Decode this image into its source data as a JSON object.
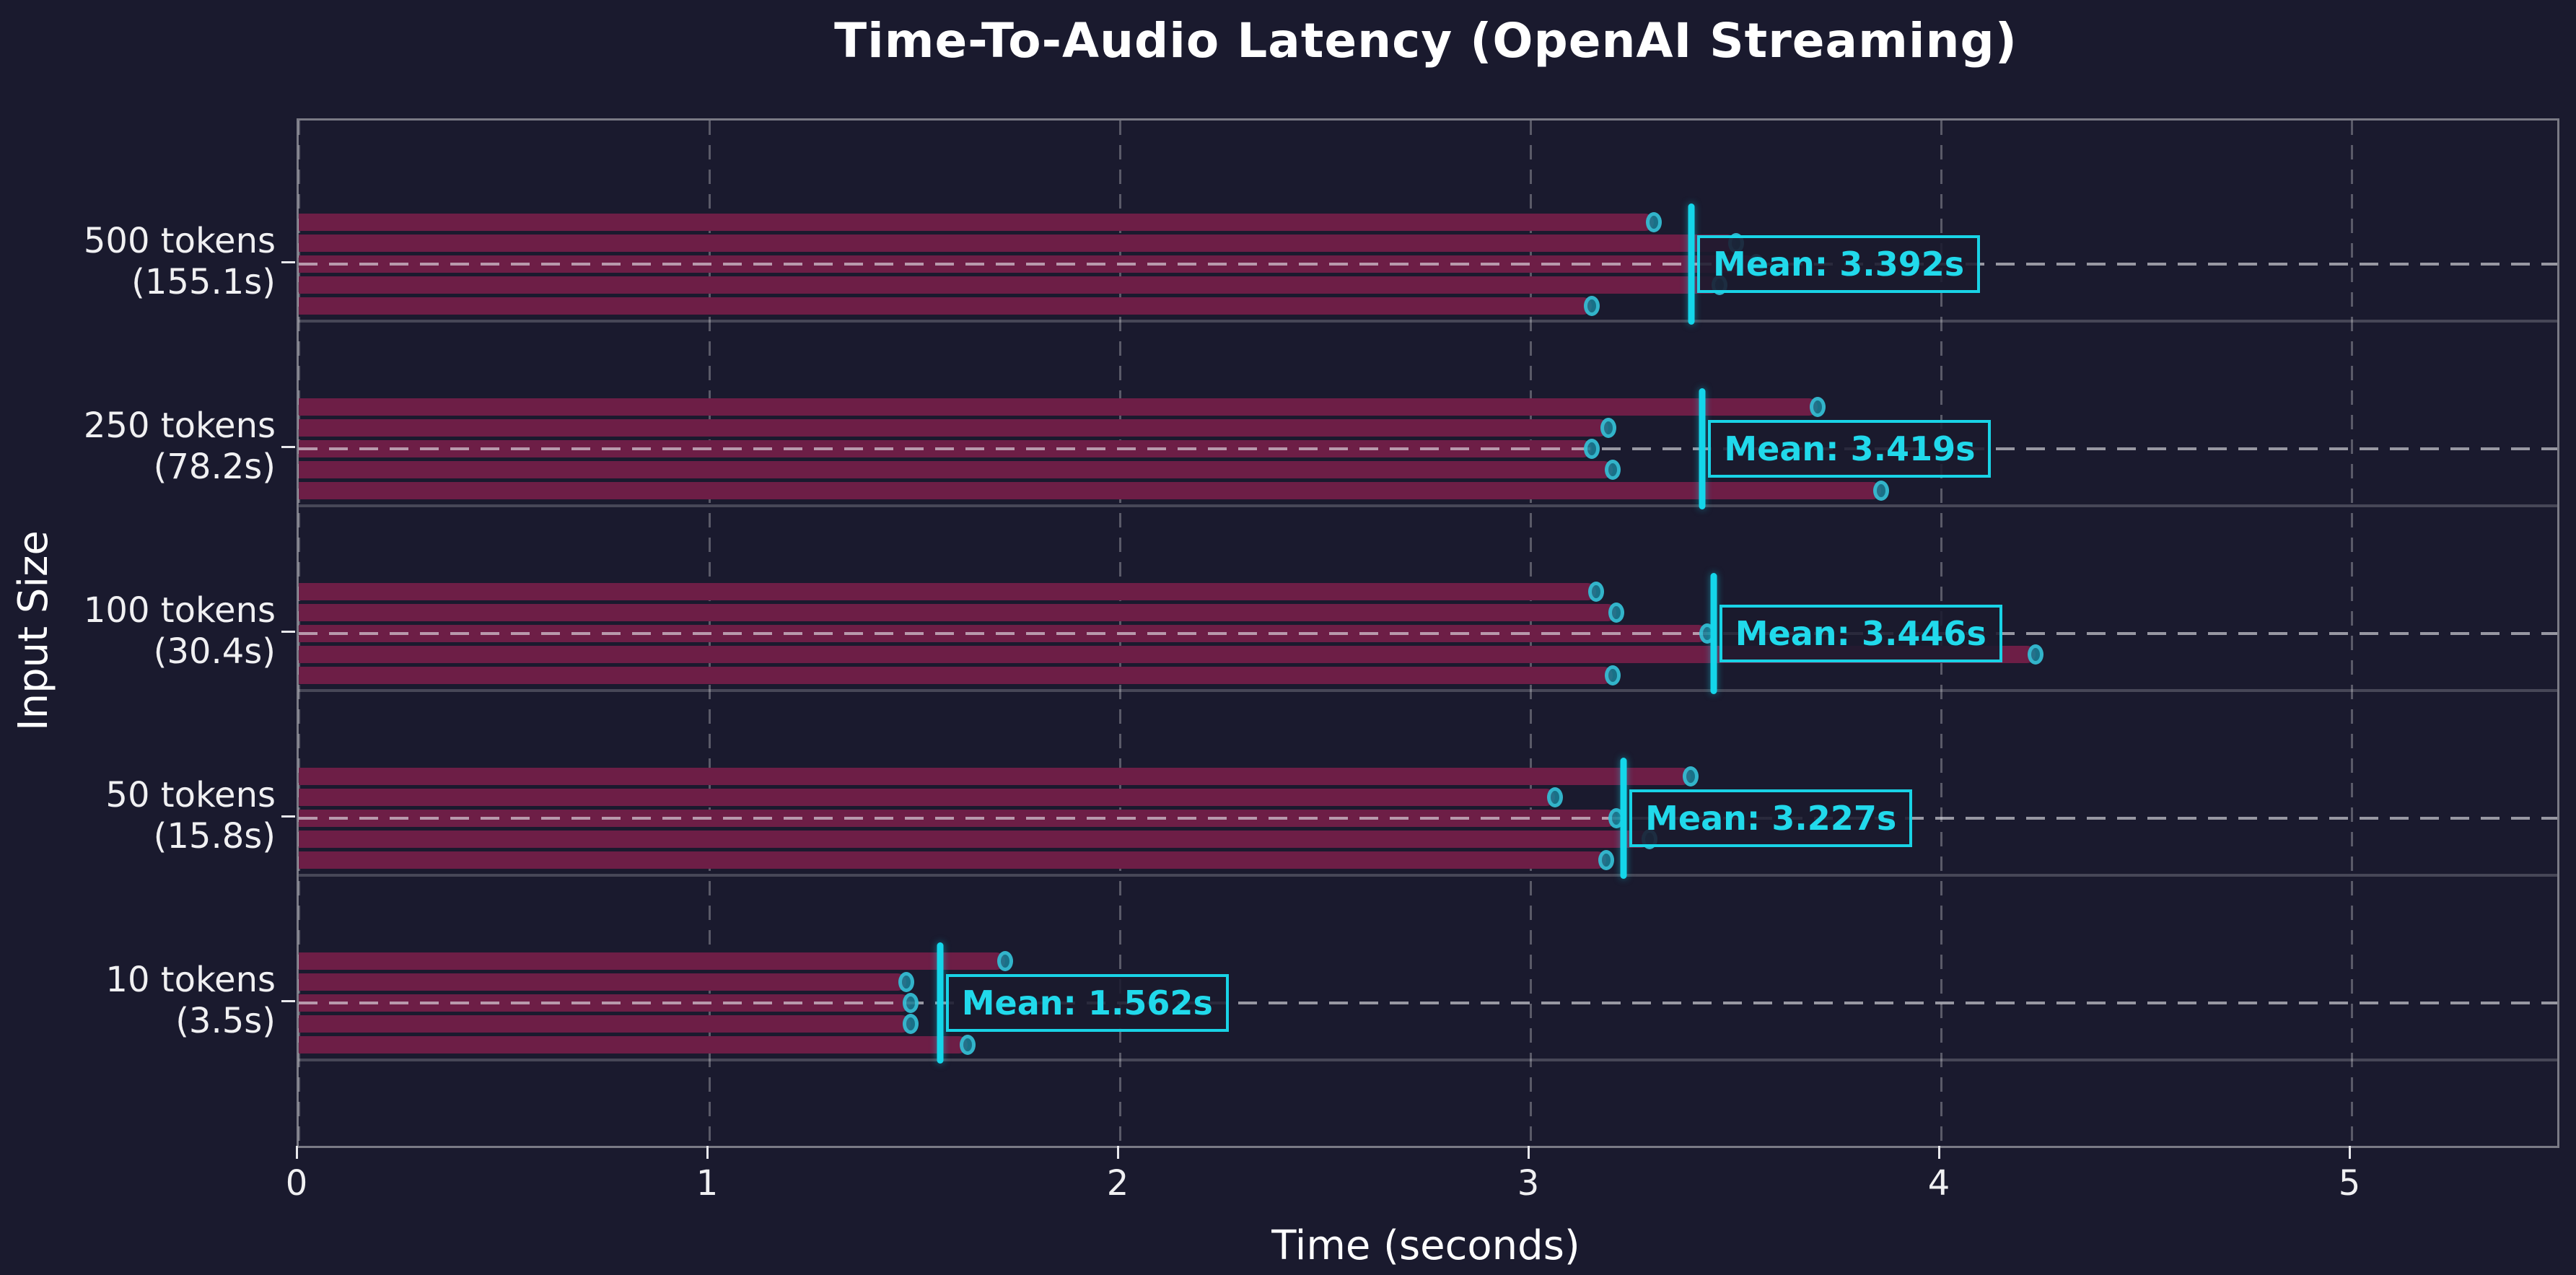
{
  "title": "Time-To-Audio Latency (OpenAI Streaming)",
  "chart_data": {
    "type": "bar",
    "orientation": "horizontal",
    "title": "Time-To-Audio Latency (OpenAI Streaming)",
    "xlabel": "Time (seconds)",
    "ylabel": "Input Size",
    "xlim": [
      0,
      5.5
    ],
    "x_ticks": [
      0,
      1,
      2,
      3,
      4,
      5
    ],
    "x_tick_labels": [
      "0",
      "1",
      "2",
      "3",
      "4",
      "5"
    ],
    "grid": {
      "vertical_gridlines": "dashed",
      "group_center_lines": "dashed",
      "group_separators": "solid",
      "legend": "none"
    },
    "runs_per_group": 5,
    "groups": [
      {
        "label": "500 tokens",
        "sublabel": "(155.1s)",
        "runs": [
          3.3,
          3.5,
          3.55,
          3.46,
          3.15
        ],
        "mean": 3.392,
        "mean_label": "Mean: 3.392s"
      },
      {
        "label": "250 tokens",
        "sublabel": "(78.2s)",
        "runs": [
          3.7,
          3.19,
          3.15,
          3.2,
          3.855
        ],
        "mean": 3.419,
        "mean_label": "Mean: 3.419s"
      },
      {
        "label": "100 tokens",
        "sublabel": "(30.4s)",
        "runs": [
          3.16,
          3.21,
          3.43,
          4.23,
          3.2
        ],
        "mean": 3.446,
        "mean_label": "Mean: 3.446s"
      },
      {
        "label": "50 tokens",
        "sublabel": "(15.8s)",
        "runs": [
          3.39,
          3.06,
          3.21,
          3.29,
          3.185
        ],
        "mean": 3.227,
        "mean_label": "Mean: 3.227s"
      },
      {
        "label": "10 tokens",
        "sublabel": "(3.5s)",
        "runs": [
          1.72,
          1.48,
          1.49,
          1.49,
          1.63
        ],
        "mean": 1.562,
        "mean_label": "Mean: 1.562s"
      }
    ],
    "colors": {
      "background": "#1a1a2e",
      "bar": "#6d1e46",
      "dot_fill": "rgba(26,128,150,0.85)",
      "dot_edge": "rgba(64,216,238,0.65)",
      "mean_accent": "#14d6ea",
      "text": "#ffffff",
      "grid": "rgba(255,255,255,0.28)"
    }
  }
}
